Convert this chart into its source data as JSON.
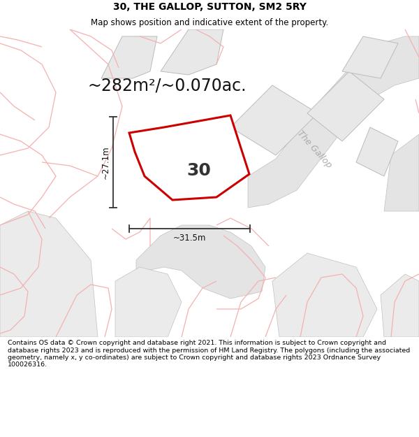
{
  "title": "30, THE GALLOP, SUTTON, SM2 5RY",
  "subtitle": "Map shows position and indicative extent of the property.",
  "area_label": "~282m²/~0.070ac.",
  "property_number": "30",
  "dim_height": "~27.1m",
  "dim_width": "~31.5m",
  "road_label": "The Gallop",
  "footer": "Contains OS data © Crown copyright and database right 2021. This information is subject to Crown copyright and database rights 2023 and is reproduced with the permission of HM Land Registry. The polygons (including the associated geometry, namely x, y co-ordinates) are subject to Crown copyright and database rights 2023 Ordnance Survey 100026316.",
  "bg_color": "#ffffff",
  "plot_color": "#cc0000",
  "gray_fill": "#e8e8e8",
  "gray_edge": "#bbbbbb",
  "light_red": "#f5b0b0",
  "title_fontsize": 10,
  "subtitle_fontsize": 8.5,
  "area_fontsize": 17,
  "footer_fontsize": 6.8,
  "number_fontsize": 18,
  "dim_fontsize": 8.5,
  "road_fontsize": 9
}
